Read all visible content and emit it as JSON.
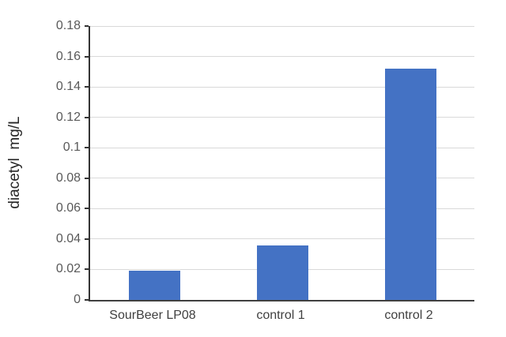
{
  "chart_data": {
    "type": "bar",
    "title": "",
    "xlabel": "",
    "ylabel": "diacetyl  mg/L",
    "categories": [
      "SourBeer LP08",
      "control 1",
      "control 2"
    ],
    "values": [
      0.019,
      0.036,
      0.152
    ],
    "ylim": [
      0,
      0.18
    ],
    "ytick_step": 0.02,
    "ytick_labels": [
      "0",
      "0.02",
      "0.04",
      "0.06",
      "0.08",
      "0.1",
      "0.12",
      "0.14",
      "0.16",
      "0.18"
    ],
    "grid": true,
    "legend_position": "none",
    "colors": {
      "bar": "#4472C4",
      "gridline": "#D9D9D9",
      "axis_line": "#333333",
      "tick_label": "#595959",
      "category_label": "#404040",
      "axis_title": "#262626",
      "background": "#ffffff"
    }
  }
}
